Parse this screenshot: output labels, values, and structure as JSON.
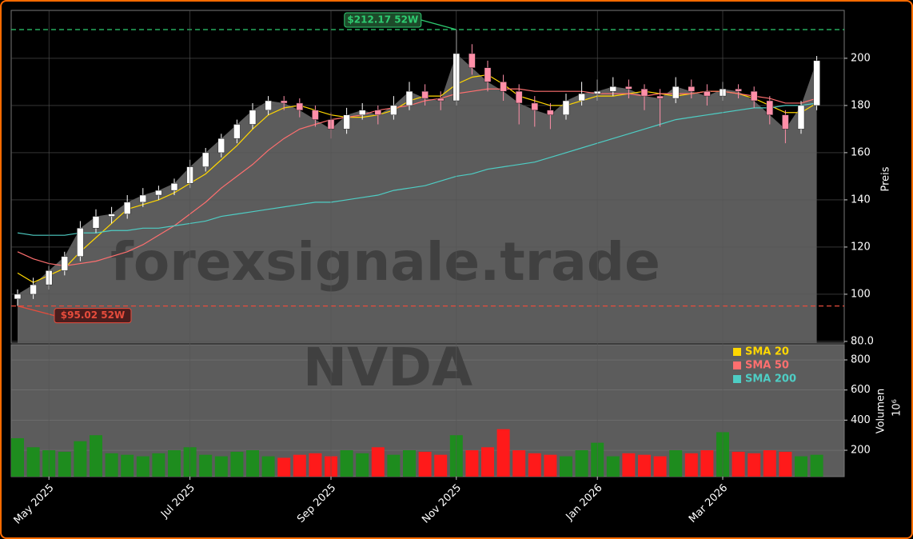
{
  "chart_data": [
    {
      "type": "candlestick",
      "watermark": "forexsignale.trade",
      "y_label": "Preis",
      "ylim": [
        79.3,
        220.3
      ],
      "yticks": [
        {
          "value": 80,
          "label": "80.0"
        },
        100,
        120,
        140,
        160,
        180,
        200
      ],
      "grid": true,
      "up_color": "#ffffff",
      "down_color": "#ff8fa8",
      "area_color": "#5c5c5c",
      "open": [
        98,
        100,
        104,
        110,
        116,
        128,
        133,
        134,
        139,
        142,
        144,
        147,
        154,
        160,
        166,
        172,
        178,
        182,
        181,
        178,
        174,
        170,
        176,
        178,
        176,
        180,
        186,
        183,
        182,
        202,
        196,
        190,
        186,
        181,
        178,
        176,
        182,
        185,
        186,
        188,
        187,
        184,
        183,
        188,
        186,
        184,
        187,
        186,
        182,
        176,
        170,
        180
      ],
      "high": [
        102,
        107,
        112,
        118,
        131,
        136,
        137,
        142,
        145,
        146,
        149,
        157,
        162,
        168,
        174,
        181,
        184,
        184,
        183,
        180,
        177,
        179,
        181,
        180,
        184,
        190,
        189,
        186,
        212.17,
        206,
        199,
        193,
        189,
        184,
        181,
        185,
        190,
        191,
        192,
        191,
        189,
        187,
        192,
        191,
        189,
        190,
        189,
        188,
        184,
        178,
        182,
        201
      ],
      "low": [
        95.02,
        98,
        102,
        108,
        114,
        126,
        130,
        132,
        137,
        140,
        142,
        145,
        152,
        158,
        164,
        170,
        176,
        178,
        175,
        171,
        166,
        168,
        174,
        172,
        174,
        178,
        180,
        178,
        180,
        193,
        186,
        182,
        172,
        171,
        170,
        174,
        180,
        182,
        184,
        183,
        178,
        171,
        181,
        183,
        180,
        182,
        183,
        179,
        172,
        164,
        168,
        178
      ],
      "close": [
        100,
        104,
        110,
        116,
        128,
        133,
        134,
        139,
        142,
        144,
        147,
        154,
        160,
        166,
        172,
        178,
        182,
        181,
        178,
        174,
        170,
        176,
        178,
        176,
        180,
        186,
        183,
        182,
        202,
        196,
        190,
        186,
        181,
        178,
        176,
        182,
        185,
        186,
        188,
        187,
        184,
        183,
        188,
        186,
        184,
        187,
        186,
        182,
        176,
        170,
        180,
        199
      ],
      "series": [
        {
          "name": "SMA 20",
          "color": "#ffd700",
          "values": [
            109,
            105,
            108,
            111,
            118,
            124,
            130,
            136,
            138,
            140,
            143,
            147,
            151,
            157,
            163,
            170,
            176,
            179,
            180,
            178,
            176,
            175,
            175,
            176,
            178,
            182,
            184,
            184,
            189,
            192,
            193,
            189,
            184,
            182,
            180,
            180,
            182,
            184,
            184,
            185,
            186,
            185,
            184,
            185,
            186,
            186,
            185,
            183,
            180,
            177,
            177,
            181
          ]
        },
        {
          "name": "SMA 50",
          "color": "#ff6f6f",
          "values": [
            118,
            115,
            113,
            112,
            113,
            114,
            116,
            118,
            121,
            125,
            129,
            134,
            139,
            145,
            150,
            155,
            161,
            166,
            170,
            172,
            174,
            175,
            176,
            178,
            179,
            180,
            182,
            183,
            185,
            186,
            187,
            187,
            187,
            186,
            186,
            186,
            186,
            185,
            185,
            185,
            184,
            185,
            185,
            185,
            186,
            186,
            185,
            184,
            183,
            181,
            181,
            183
          ]
        },
        {
          "name": "SMA 200",
          "color": "#4ecdc4",
          "values": [
            126,
            125,
            125,
            125,
            126,
            126,
            127,
            127,
            128,
            128,
            129,
            130,
            131,
            133,
            134,
            135,
            136,
            137,
            138,
            139,
            139,
            140,
            141,
            142,
            144,
            145,
            146,
            148,
            150,
            151,
            153,
            154,
            155,
            156,
            158,
            160,
            162,
            164,
            166,
            168,
            170,
            172,
            174,
            175,
            176,
            177,
            178,
            179,
            179,
            180,
            180,
            181
          ]
        }
      ],
      "annotations": [
        {
          "value": 212.17,
          "label": "$212.17 52W",
          "color": "#2ecc71"
        },
        {
          "value": 95.02,
          "label": "$95.02 52W",
          "color": "#e74c3c"
        }
      ]
    },
    {
      "type": "bar",
      "watermark": "NVDA",
      "y_label": "Volumen",
      "y_exponent": "10⁶",
      "ylim": [
        25,
        901
      ],
      "yticks": [
        200,
        400,
        600,
        800
      ],
      "grid": true,
      "up_color": "#1e8c1e",
      "down_color": "#ff1a1a",
      "categories": [
        null,
        null,
        "May 2025",
        null,
        null,
        null,
        null,
        null,
        null,
        null,
        null,
        "Jul 2025",
        null,
        null,
        null,
        null,
        null,
        null,
        null,
        null,
        "Sep 2025",
        null,
        null,
        null,
        null,
        null,
        null,
        null,
        "Nov 2025",
        null,
        null,
        null,
        null,
        null,
        null,
        null,
        null,
        "Jan 2026",
        null,
        null,
        null,
        null,
        null,
        null,
        null,
        "Mar 2026",
        null,
        null,
        null,
        null,
        null,
        null
      ],
      "values": [
        280,
        220,
        200,
        190,
        260,
        300,
        180,
        170,
        160,
        180,
        200,
        220,
        170,
        160,
        190,
        200,
        160,
        150,
        170,
        180,
        160,
        200,
        180,
        220,
        170,
        200,
        190,
        170,
        300,
        200,
        220,
        340,
        200,
        180,
        170,
        160,
        200,
        250,
        160,
        180,
        170,
        160,
        200,
        180,
        200,
        320,
        190,
        180,
        200,
        190,
        160,
        170
      ]
    }
  ]
}
